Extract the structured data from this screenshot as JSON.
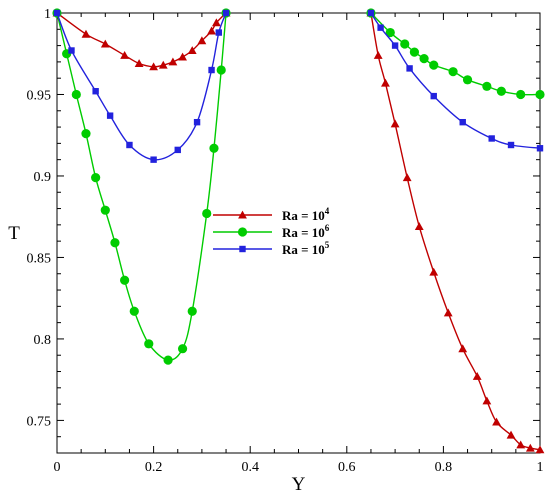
{
  "chart_data": {
    "type": "line",
    "title": "",
    "xlabel": "Y",
    "ylabel": "T",
    "xlim": [
      0,
      1
    ],
    "ylim": [
      0.73,
      1
    ],
    "xticks": [
      "0",
      "0.2",
      "0.4",
      "0.6",
      "0.8",
      "1"
    ],
    "xtick_values": [
      0,
      0.2,
      0.4,
      0.6,
      0.8,
      1
    ],
    "yticks": [
      "0.75",
      "0.8",
      "0.85",
      "0.9",
      "0.95",
      "1"
    ],
    "ytick_values": [
      0.75,
      0.8,
      0.85,
      0.9,
      0.95,
      1
    ],
    "grid": false,
    "legend_position": "center",
    "series": [
      {
        "name_base": "Ra = 10",
        "name_exp": "4",
        "color": "#c00000",
        "marker": "triangle",
        "segments": [
          [
            [
              0,
              1
            ],
            [
              0.06,
              0.987
            ],
            [
              0.1,
              0.981
            ],
            [
              0.14,
              0.974
            ],
            [
              0.17,
              0.969
            ],
            [
              0.2,
              0.967
            ],
            [
              0.22,
              0.968
            ],
            [
              0.24,
              0.97
            ],
            [
              0.26,
              0.973
            ],
            [
              0.28,
              0.977
            ],
            [
              0.3,
              0.983
            ],
            [
              0.32,
              0.989
            ],
            [
              0.33,
              0.994
            ],
            [
              0.35,
              1
            ]
          ],
          [
            [
              0.65,
              1
            ],
            [
              0.665,
              0.974
            ],
            [
              0.68,
              0.957
            ],
            [
              0.7,
              0.932
            ],
            [
              0.725,
              0.899
            ],
            [
              0.75,
              0.869
            ],
            [
              0.78,
              0.841
            ],
            [
              0.81,
              0.816
            ],
            [
              0.84,
              0.794
            ],
            [
              0.87,
              0.777
            ],
            [
              0.89,
              0.762
            ],
            [
              0.91,
              0.749
            ],
            [
              0.94,
              0.741
            ],
            [
              0.96,
              0.735
            ],
            [
              0.98,
              0.733
            ],
            [
              1.0,
              0.732
            ]
          ]
        ]
      },
      {
        "name_base": "Ra = 10",
        "name_exp": "6",
        "color": "#00cc00",
        "marker": "circle",
        "segments": [
          [
            [
              0,
              1
            ],
            [
              0.02,
              0.975
            ],
            [
              0.04,
              0.95
            ],
            [
              0.06,
              0.926
            ],
            [
              0.08,
              0.899
            ],
            [
              0.1,
              0.879
            ],
            [
              0.12,
              0.859
            ],
            [
              0.14,
              0.836
            ],
            [
              0.16,
              0.817
            ],
            [
              0.19,
              0.797
            ],
            [
              0.23,
              0.787
            ],
            [
              0.26,
              0.794
            ],
            [
              0.28,
              0.817
            ],
            [
              0.31,
              0.877
            ],
            [
              0.325,
              0.917
            ],
            [
              0.34,
              0.965
            ],
            [
              0.35,
              1
            ]
          ],
          [
            [
              0.65,
              1
            ],
            [
              0.69,
              0.988
            ],
            [
              0.72,
              0.981
            ],
            [
              0.74,
              0.976
            ],
            [
              0.76,
              0.972
            ],
            [
              0.78,
              0.968
            ],
            [
              0.82,
              0.964
            ],
            [
              0.85,
              0.959
            ],
            [
              0.89,
              0.955
            ],
            [
              0.92,
              0.952
            ],
            [
              0.96,
              0.95
            ],
            [
              1.0,
              0.95
            ]
          ]
        ]
      },
      {
        "name_base": "Ra = 10",
        "name_exp": "5",
        "color": "#2222dd",
        "marker": "square",
        "segments": [
          [
            [
              0,
              1
            ],
            [
              0.03,
              0.977
            ],
            [
              0.08,
              0.952
            ],
            [
              0.11,
              0.937
            ],
            [
              0.15,
              0.919
            ],
            [
              0.2,
              0.91
            ],
            [
              0.25,
              0.916
            ],
            [
              0.29,
              0.933
            ],
            [
              0.32,
              0.965
            ],
            [
              0.335,
              0.988
            ],
            [
              0.35,
              1
            ]
          ],
          [
            [
              0.65,
              1
            ],
            [
              0.67,
              0.991
            ],
            [
              0.7,
              0.98
            ],
            [
              0.73,
              0.966
            ],
            [
              0.78,
              0.949
            ],
            [
              0.84,
              0.933
            ],
            [
              0.9,
              0.923
            ],
            [
              0.94,
              0.919
            ],
            [
              1.0,
              0.917
            ]
          ]
        ]
      }
    ]
  }
}
